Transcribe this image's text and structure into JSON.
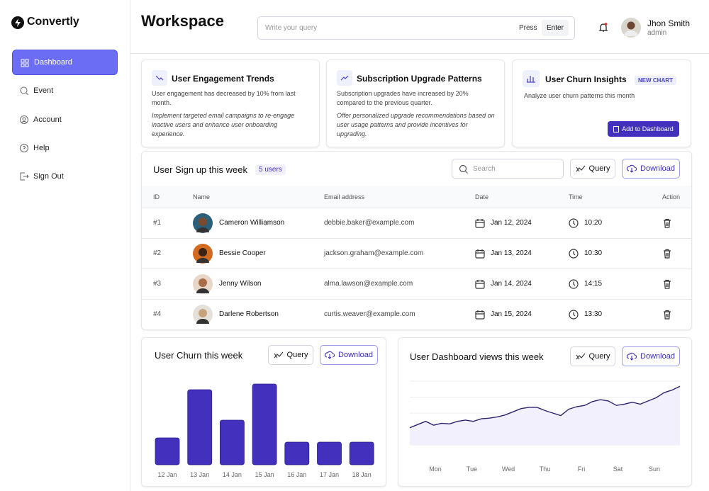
{
  "sidebar": {
    "brand": "Convertly",
    "menu": [
      "Dashboard",
      "Event",
      "Account",
      "Help",
      "Sign Out"
    ]
  },
  "header": {
    "title": "Workspace",
    "search_placeholder": "Write your query",
    "press": "Press",
    "enter": "Enter",
    "user": {
      "name": "Jhon Smith",
      "role": "admin"
    }
  },
  "insights": [
    {
      "title": "User Engagement Trends",
      "text": "User engagement has decreased by 10% from last month.",
      "suggestion": "Implement targeted email campaigns to re-engage inactive users and enhance user onboarding experience."
    },
    {
      "title": "Subscription Upgrade Patterns",
      "text": "Subscription upgrades have increased by 20% compared to the previous quarter.",
      "suggestion": "Offer personalized upgrade recommendations based on user usage patterns and provide incentives for upgrading."
    },
    {
      "title": "User Churn Insights",
      "badge": "NEW CHART",
      "text": "Analyze user churn patterns this month",
      "button": "Add to Dashboard"
    }
  ],
  "table": {
    "title": "User Sign up this week",
    "badge": "5 users",
    "search": "Search",
    "query": "Query",
    "download": "Download",
    "columns": [
      "ID",
      "Name",
      "Email address",
      "Date",
      "Time",
      "Action"
    ],
    "rows": [
      [
        "#1",
        "Cameron Williamson",
        "debbie.baker@example.com",
        "Jan 12, 2024",
        "10:20"
      ],
      [
        "#2",
        "Bessie Cooper",
        "jackson.graham@example.com",
        "Jan 13, 2024",
        "10:30"
      ],
      [
        "#3",
        "Jenny Wilson",
        "alma.lawson@example.com",
        "Jan 14, 2024",
        "14:15"
      ],
      [
        "#4",
        "Darlene Robertson",
        "curtis.weaver@example.com",
        "Jan 15, 2024",
        "13:30"
      ]
    ]
  },
  "chart_data": [
    {
      "type": "bar",
      "title": "User Churn this week",
      "query": "Query",
      "download": "Download",
      "categories": [
        "12 Jan",
        "13 Jan",
        "14 Jan",
        "15 Jan",
        "16 Jan",
        "17 Jan",
        "18 Jan"
      ],
      "values": [
        38,
        106,
        63,
        114,
        32,
        32,
        32
      ],
      "ylim": [
        0,
        120
      ],
      "color": "#4331bd"
    },
    {
      "type": "line",
      "title": "User Dashboard views this week",
      "query": "Query",
      "download": "Download",
      "x_labels": [
        "Mon",
        "Tue",
        "Wed",
        "Thu",
        "Fri",
        "Sat",
        "Sun"
      ],
      "values": [
        27,
        32,
        37,
        31,
        34,
        33,
        37,
        39,
        37,
        41,
        42,
        44,
        47,
        52,
        57,
        59,
        59,
        54,
        50,
        46,
        56,
        60,
        62,
        68,
        71,
        69,
        62,
        64,
        67,
        64,
        69,
        74,
        82,
        86,
        92
      ],
      "ylim": [
        0,
        100
      ],
      "yticks": [
        0,
        25,
        50,
        75,
        100
      ],
      "grid": true,
      "color": "#2e2470"
    }
  ]
}
